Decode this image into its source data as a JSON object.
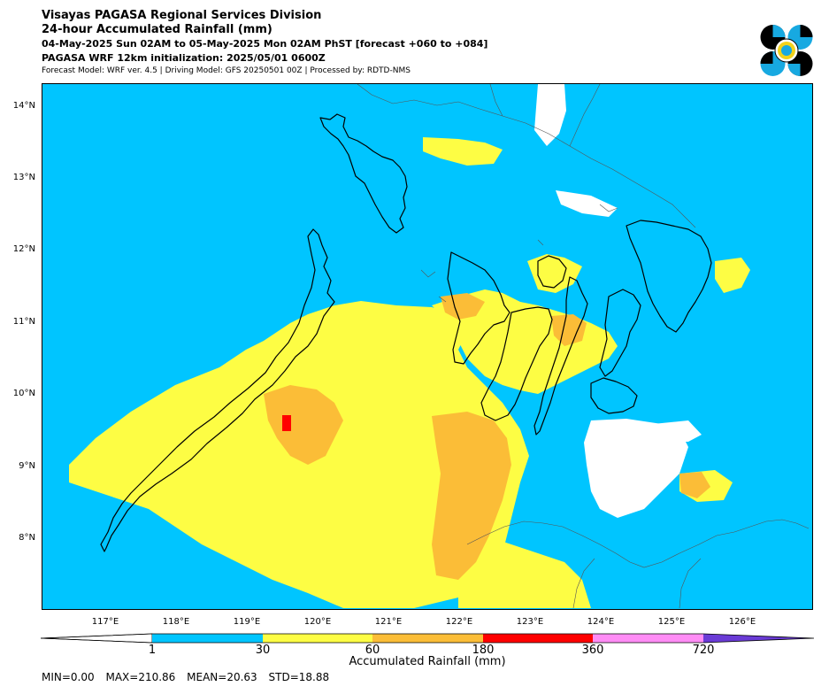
{
  "header": {
    "line1": "Visayas PAGASA Regional Services Division",
    "line2": "24-hour Accumulated Rainfall (mm)",
    "line3": "04-May-2025 Sun 02AM to 05-May-2025 Mon 02AM PhST [forecast +060 to +084]",
    "line4": "PAGASA WRF 12km initialization: 2025/05/01 0600Z",
    "line5": "Forecast Model: WRF ver. 4.5 | Driving Model: GFS 20250501 00Z | Processed by: RDTD-NMS"
  },
  "logo": {
    "icon": "pagasa-logo-icon",
    "colors": [
      "#000000",
      "#17a9e1",
      "#f2d21b"
    ]
  },
  "map": {
    "lat_labels": [
      "14°N",
      "13°N",
      "12°N",
      "11°N",
      "10°N",
      "9°N",
      "8°N"
    ],
    "lon_labels": [
      "117°E",
      "118°E",
      "119°E",
      "120°E",
      "121°E",
      "122°E",
      "123°E",
      "124°E",
      "125°E",
      "126°E"
    ],
    "colors": {
      "lt1": "#ffffff",
      "c1_30": "#00c5ff",
      "c30_60": "#fdfd44",
      "c60_180": "#fbbd37",
      "c180_360": "#ff0000",
      "c360_720": "#ff8cf5",
      "c720": "#6a3bd6"
    }
  },
  "colorbar": {
    "ticks": [
      "1",
      "30",
      "60",
      "180",
      "360",
      "720"
    ],
    "label": "Accumulated Rainfall (mm)"
  },
  "stats": {
    "min": "MIN=0.00",
    "max": "MAX=210.86",
    "mean": "MEAN=20.63",
    "std": "STD=18.88"
  }
}
